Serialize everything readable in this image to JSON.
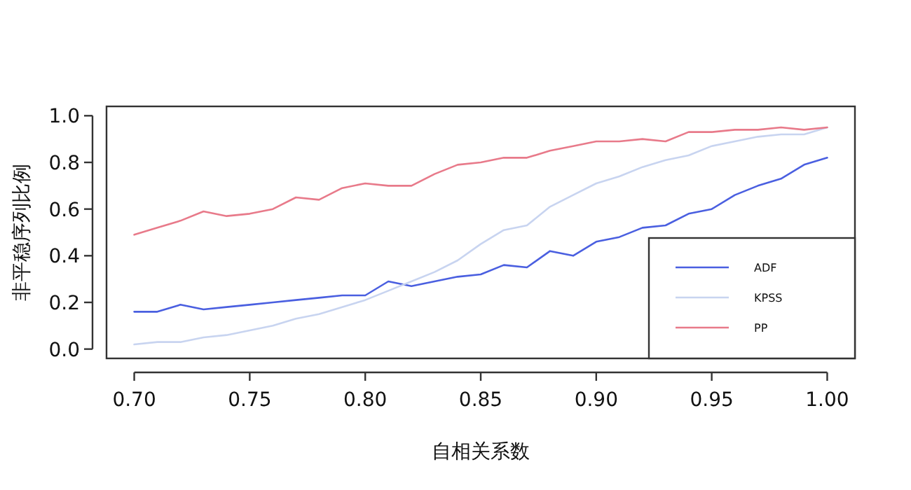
{
  "chart_data": {
    "type": "line",
    "xlabel": "自相关系数",
    "ylabel": "非平稳序列比例",
    "x": [
      0.7,
      0.71,
      0.72,
      0.73,
      0.74,
      0.75,
      0.76,
      0.77,
      0.78,
      0.79,
      0.8,
      0.81,
      0.82,
      0.83,
      0.84,
      0.85,
      0.86,
      0.87,
      0.88,
      0.89,
      0.9,
      0.91,
      0.92,
      0.93,
      0.94,
      0.95,
      0.96,
      0.97,
      0.98,
      0.99,
      1.0
    ],
    "series": [
      {
        "name": "ADF",
        "color": "#4a5fe0",
        "values": [
          0.16,
          0.16,
          0.19,
          0.17,
          0.18,
          0.19,
          0.2,
          0.21,
          0.22,
          0.23,
          0.23,
          0.29,
          0.27,
          0.29,
          0.31,
          0.32,
          0.36,
          0.35,
          0.42,
          0.4,
          0.46,
          0.48,
          0.52,
          0.53,
          0.58,
          0.6,
          0.66,
          0.7,
          0.73,
          0.79,
          0.82
        ]
      },
      {
        "name": "KPSS",
        "color": "#c8d4f0",
        "values": [
          0.02,
          0.03,
          0.03,
          0.05,
          0.06,
          0.08,
          0.1,
          0.13,
          0.15,
          0.18,
          0.21,
          0.25,
          0.29,
          0.33,
          0.38,
          0.45,
          0.51,
          0.53,
          0.61,
          0.66,
          0.71,
          0.74,
          0.78,
          0.81,
          0.83,
          0.87,
          0.89,
          0.91,
          0.92,
          0.92,
          0.95
        ]
      },
      {
        "name": "PP",
        "color": "#e87a8a",
        "values": [
          0.49,
          0.52,
          0.55,
          0.59,
          0.57,
          0.58,
          0.6,
          0.65,
          0.64,
          0.69,
          0.71,
          0.7,
          0.7,
          0.75,
          0.79,
          0.8,
          0.82,
          0.82,
          0.85,
          0.87,
          0.89,
          0.89,
          0.9,
          0.89,
          0.93,
          0.93,
          0.94,
          0.94,
          0.95,
          0.94,
          0.95
        ]
      }
    ],
    "xlim": [
      0.688,
      1.012
    ],
    "ylim": [
      -0.04,
      1.04
    ],
    "xticks": [
      {
        "value": 0.7,
        "label": "0.70"
      },
      {
        "value": 0.75,
        "label": "0.75"
      },
      {
        "value": 0.8,
        "label": "0.80"
      },
      {
        "value": 0.85,
        "label": "0.85"
      },
      {
        "value": 0.9,
        "label": "0.90"
      },
      {
        "value": 0.95,
        "label": "0.95"
      },
      {
        "value": 1.0,
        "label": "1.00"
      }
    ],
    "yticks": [
      {
        "value": 0,
        "label": "0.0"
      },
      {
        "value": 0.2,
        "label": "0.2"
      },
      {
        "value": 0.4,
        "label": "0.4"
      },
      {
        "value": 0.6,
        "label": "0.6"
      },
      {
        "value": 0.8,
        "label": "0.8"
      },
      {
        "value": 1.0,
        "label": "1.0"
      }
    ],
    "grid": false,
    "legend": "bottom right",
    "line_style": "solid",
    "marker": "none"
  }
}
